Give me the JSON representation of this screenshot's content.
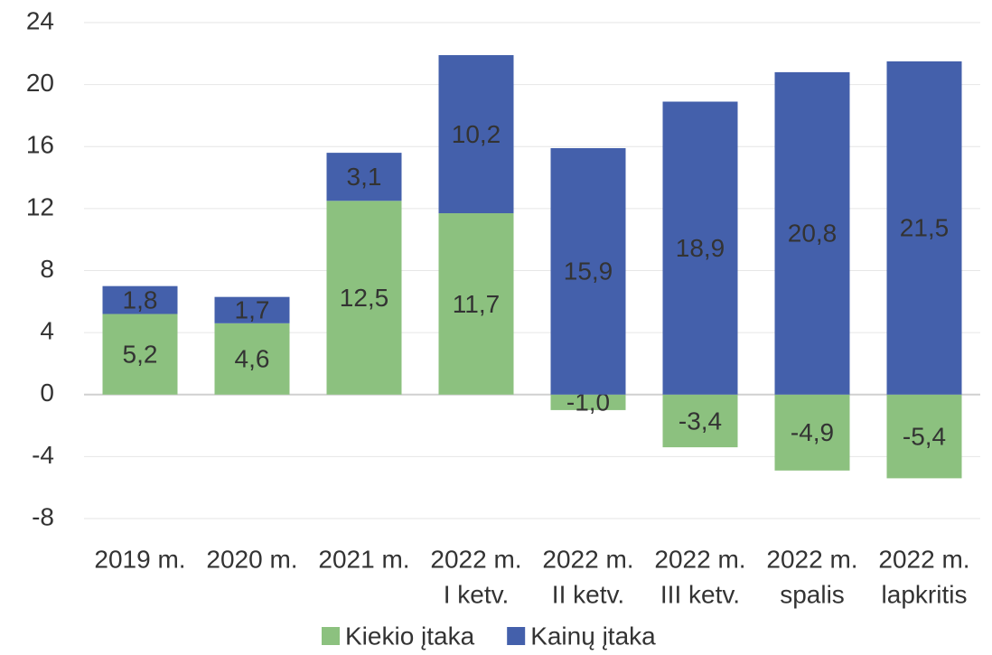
{
  "chart_data": {
    "type": "stacked_bar",
    "categories": [
      [
        "2019 m."
      ],
      [
        "2020 m."
      ],
      [
        "2021 m."
      ],
      [
        "2022 m.",
        "I ketv."
      ],
      [
        "2022 m.",
        "II ketv."
      ],
      [
        "2022 m.",
        "III ketv."
      ],
      [
        "2022 m.",
        "spalis"
      ],
      [
        "2022 m.",
        "lapkritis"
      ]
    ],
    "series": [
      {
        "name": "Kiekio įtaka",
        "color": "#8cc17f",
        "values": [
          5.2,
          4.6,
          12.5,
          11.7,
          -1.0,
          -3.4,
          -4.9,
          -5.4
        ],
        "value_labels": [
          "5,2",
          "4,6",
          "12,5",
          "11,7",
          "-1,0",
          "-3,4",
          "-4,9",
          "-5,4"
        ]
      },
      {
        "name": "Kainų įtaka",
        "color": "#4460ab",
        "values": [
          1.8,
          1.7,
          3.1,
          10.2,
          15.9,
          18.9,
          20.8,
          21.5
        ],
        "value_labels": [
          "1,8",
          "1,7",
          "3,1",
          "10,2",
          "15,9",
          "18,9",
          "20,8",
          "21,5"
        ]
      }
    ],
    "ylim": [
      -8,
      24
    ],
    "yticks": [
      -8,
      -4,
      0,
      4,
      8,
      12,
      16,
      20,
      24
    ],
    "grid": true,
    "legend": "bottom"
  }
}
